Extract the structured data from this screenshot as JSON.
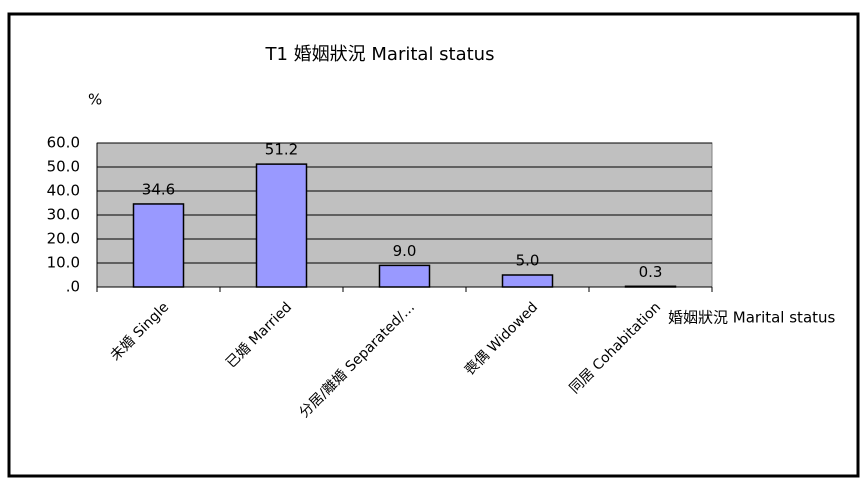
{
  "chart_data": {
    "type": "bar",
    "title": "T1 婚姻狀況 Marital status",
    "y_label": "%",
    "x_label": "婚姻狀況 Marital status",
    "categories": [
      "未婚 Single",
      "已婚 Married",
      "分居/離婚 Separated/…",
      "喪偶 Widowed",
      "同居 Cohabitation"
    ],
    "values": [
      34.6,
      51.2,
      9.0,
      5.0,
      0.3
    ],
    "value_labels": [
      "34.6",
      "51.2",
      "9.0",
      "5.0",
      "0.3"
    ],
    "color": "#9999ff",
    "ylim": [
      0,
      60
    ],
    "yticks": [
      {
        "value": 0,
        "label": ".0"
      },
      {
        "value": 10,
        "label": "10.0"
      },
      {
        "value": 20,
        "label": "20.0"
      },
      {
        "value": 30,
        "label": "30.0"
      },
      {
        "value": 40,
        "label": "40.0"
      },
      {
        "value": 50,
        "label": "50.0"
      },
      {
        "value": 60,
        "label": "60.0"
      }
    ],
    "grid": true
  }
}
